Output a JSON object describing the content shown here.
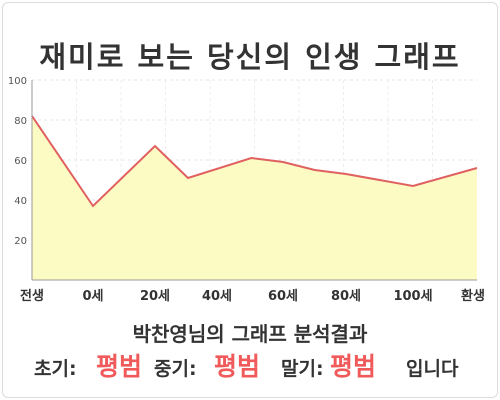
{
  "title": "재미로 보는 당신의 인생 그래프",
  "chart_data": {
    "type": "area",
    "x_labels": [
      "전생",
      "0세",
      "20세",
      "40세",
      "60세",
      "80세",
      "100세",
      "환생"
    ],
    "points": [
      {
        "x": "전생",
        "y": 82
      },
      {
        "x": "0세",
        "y": 37
      },
      {
        "x": "20세",
        "y": 67
      },
      {
        "x": "30세",
        "y": 51
      },
      {
        "x": "50세",
        "y": 61
      },
      {
        "x": "60세",
        "y": 59
      },
      {
        "x": "70세",
        "y": 55
      },
      {
        "x": "80세",
        "y": 53
      },
      {
        "x": "100세",
        "y": 47
      },
      {
        "x": "환생",
        "y": 56
      }
    ],
    "y_ticks": [
      20,
      40,
      60,
      80,
      100
    ],
    "ylim": [
      0,
      100
    ],
    "grid": true,
    "line_color": "#e06060",
    "fill_color": "#fdfbc4"
  },
  "result": {
    "heading": "박찬영님의 그래프 분석결과",
    "early_label": "초기:",
    "early_value": "평범",
    "middle_label": "중기:",
    "middle_value": "평범",
    "late_label": "말기:",
    "late_value": "평범",
    "suffix": "입니다"
  }
}
